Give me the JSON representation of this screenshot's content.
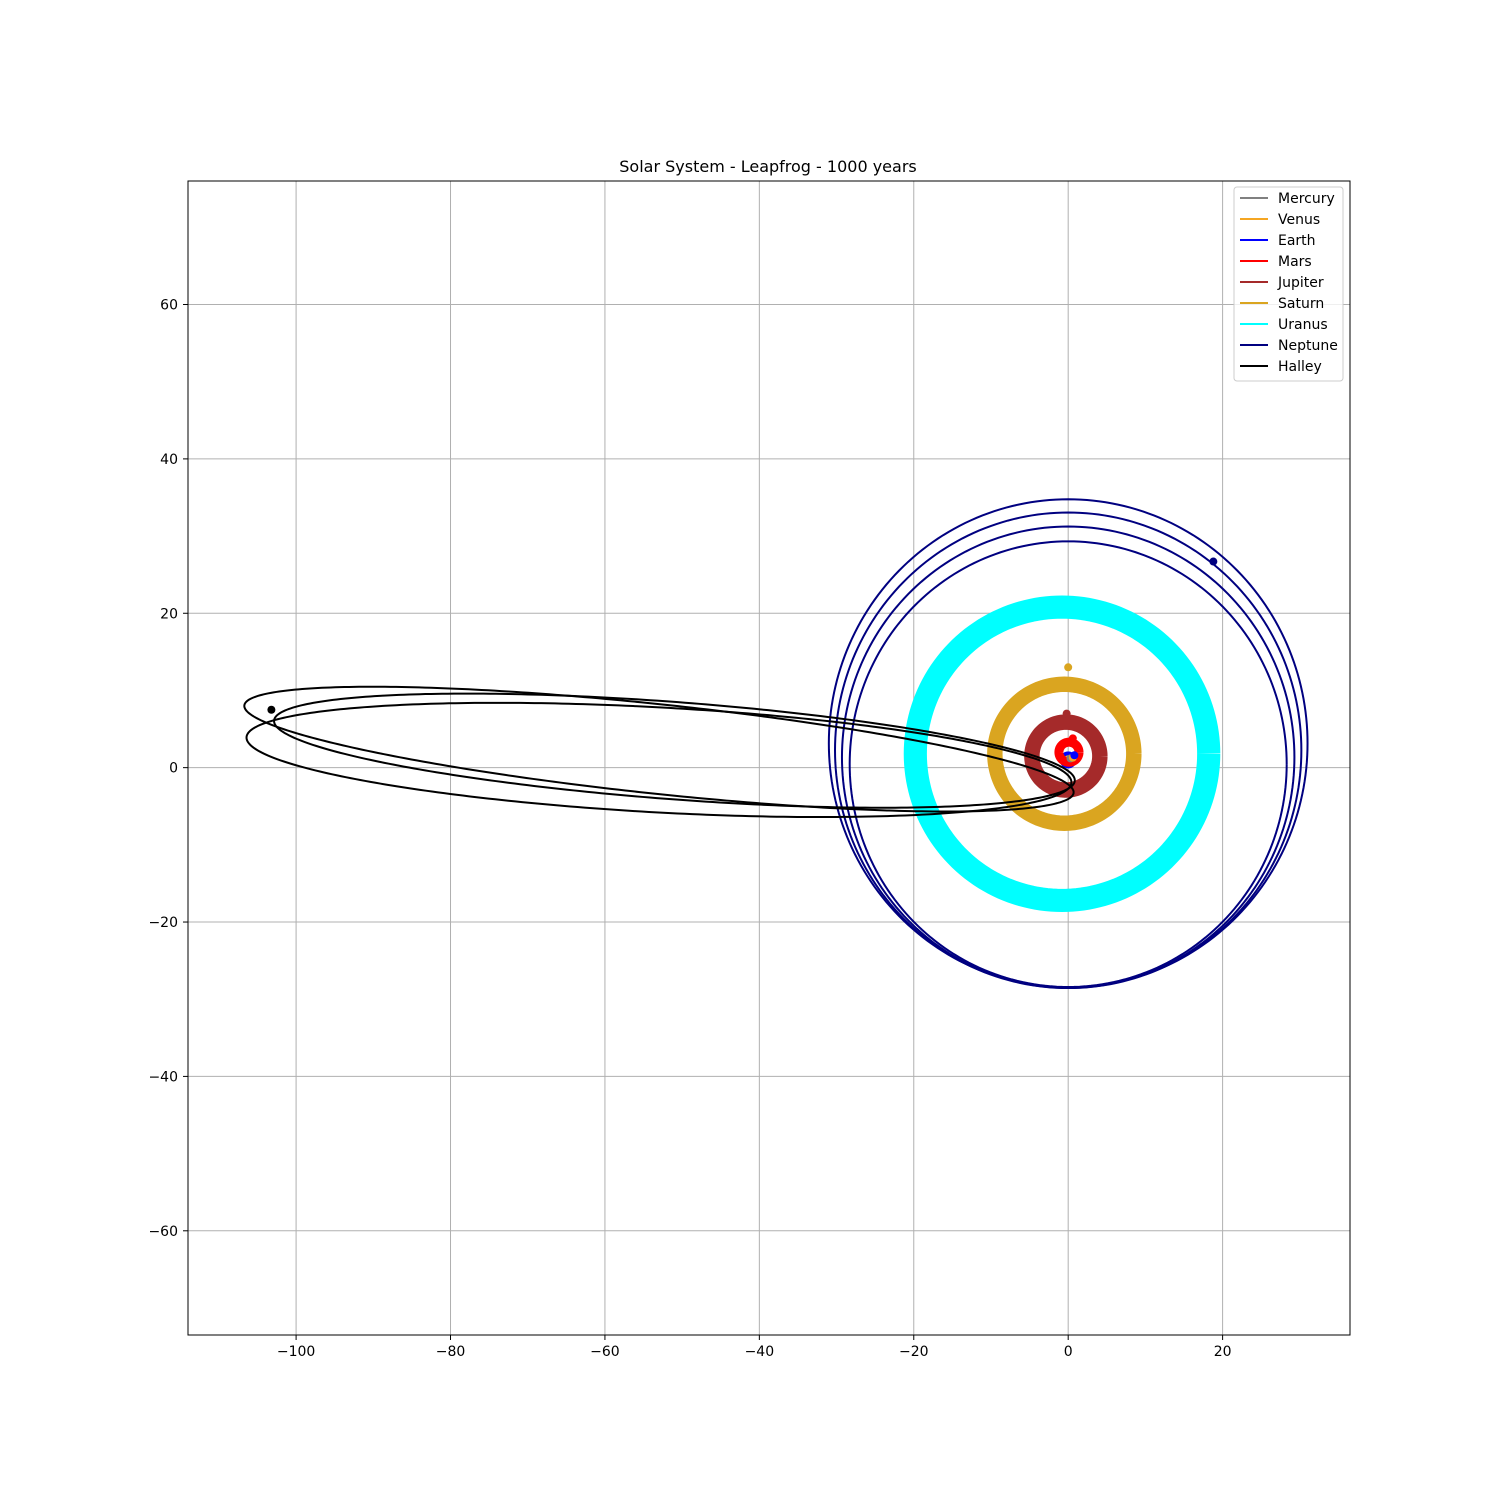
{
  "chart_data": {
    "type": "line",
    "title": "Solar System - Leapfrog - 1000 years",
    "xlabel": "",
    "ylabel": "",
    "xlim": [
      -114,
      36.5
    ],
    "ylim": [
      -73.5,
      76
    ],
    "xticks": [
      -100,
      -80,
      -60,
      -40,
      -20,
      0,
      20
    ],
    "yticks": [
      -60,
      -40,
      -20,
      0,
      20,
      40,
      60
    ],
    "xtick_labels": [
      "−100",
      "−80",
      "−60",
      "−40",
      "−20",
      "0",
      "20"
    ],
    "ytick_labels": [
      "−60",
      "−40",
      "−20",
      "0",
      "20",
      "40",
      "60"
    ],
    "grid": true,
    "legend_position": "top-right",
    "series": [
      {
        "name": "Mercury",
        "color": "#808080",
        "kind": "ring",
        "cx": 0.0,
        "cy": 1.0,
        "r_in": 0.1,
        "r_out": 0.45,
        "width": 2,
        "marker": [
          0.3,
          1.2
        ]
      },
      {
        "name": "Venus",
        "color": "#f5a623",
        "kind": "ring",
        "cx": 0.0,
        "cy": 1.0,
        "r_in": 0.4,
        "r_out": 0.8,
        "width": 2,
        "marker": [
          0.6,
          1.3
        ]
      },
      {
        "name": "Earth",
        "color": "#0000ff",
        "kind": "ring",
        "cx": 0.0,
        "cy": 1.0,
        "r_in": 0.6,
        "r_out": 1.1,
        "width": 2,
        "marker": [
          0.8,
          1.6
        ]
      },
      {
        "name": "Mars",
        "color": "#ff0000",
        "kind": "ring",
        "cx": 0.1,
        "cy": 2.0,
        "r_in": 0.9,
        "r_out": 1.7,
        "width": 9,
        "marker": [
          0.6,
          3.8
        ]
      },
      {
        "name": "Jupiter",
        "color": "#a52a2a",
        "kind": "ring",
        "cx": -0.3,
        "cy": 1.5,
        "r_in": 3.4,
        "r_out": 5.4,
        "width": 2,
        "marker": [
          -0.2,
          7.0
        ]
      },
      {
        "name": "Saturn",
        "color": "#daa520",
        "kind": "ring",
        "cx": -0.5,
        "cy": 1.8,
        "r_in": 8.0,
        "r_out": 10.0,
        "width": 2,
        "marker": [
          0.0,
          13.0
        ]
      },
      {
        "name": "Uranus",
        "color": "#00ffff",
        "kind": "ring",
        "cx": -0.8,
        "cy": 1.8,
        "r_in": 17.5,
        "r_out": 20.5,
        "width": 2,
        "marker": [
          17.8,
          7.9
        ]
      },
      {
        "name": "Neptune",
        "color": "#000080",
        "kind": "loops",
        "cx": 0.0,
        "cy": 1.8,
        "radii": [
          28.3,
          29.3,
          30.2,
          31.0
        ],
        "width": 2,
        "marker": [
          18.8,
          26.7
        ]
      },
      {
        "name": "Halley",
        "color": "#000000",
        "kind": "halley",
        "width": 2,
        "marker": [
          -103.2,
          7.5
        ]
      }
    ]
  }
}
